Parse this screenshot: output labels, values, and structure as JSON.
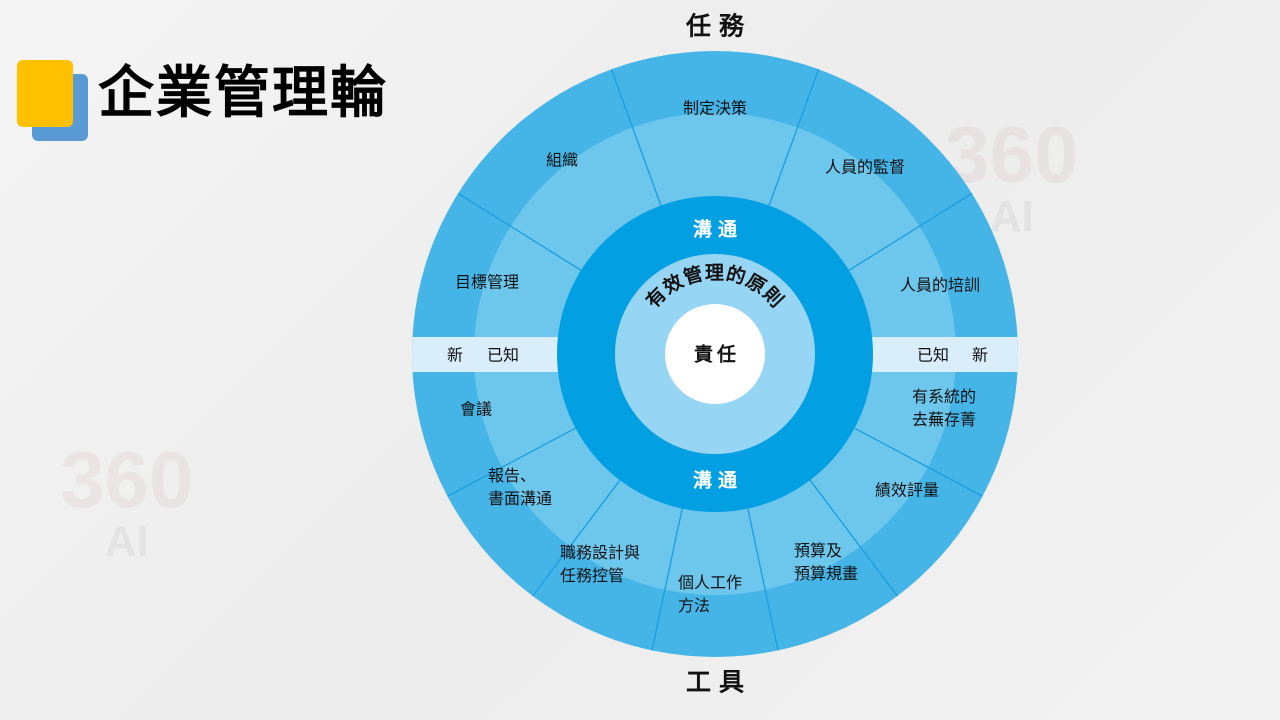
{
  "title": "企業管理輪",
  "watermark": {
    "number": "360",
    "letters": "AI"
  },
  "axis": {
    "top": "任務",
    "bottom": "工具"
  },
  "center": {
    "core": "責任",
    "arc_text": "有效管理的原則",
    "ring_top": "溝通",
    "ring_bottom": "溝通"
  },
  "band": {
    "left_outer": "新",
    "left_inner": "已知",
    "right_inner": "已知",
    "right_outer": "新"
  },
  "top_segments": [
    {
      "line1": "目標管理"
    },
    {
      "line1": "組織"
    },
    {
      "line1": "制定決策"
    },
    {
      "line1": "人員的監督"
    },
    {
      "line1": "人員的培訓"
    }
  ],
  "bottom_segments": [
    {
      "line1": "會議"
    },
    {
      "line1": "報告、",
      "line2": "書面溝通"
    },
    {
      "line1": "職務設計與",
      "line2": "任務控管"
    },
    {
      "line1": "個人工作",
      "line2": "方法"
    },
    {
      "line1": "預算及",
      "line2": "預算規畫"
    },
    {
      "line1": "績效評量"
    },
    {
      "line1": "有系統的",
      "line2": "去蕪存菁"
    }
  ],
  "colors": {
    "outer_ring": "#45b5e8",
    "middle_ring": "#6dc7ed",
    "band": "#d9eefa",
    "communication_ring": "#039fe3",
    "principle_ring": "#97d5f5",
    "core": "#ffffff",
    "divider": "#1a9de0",
    "logo_yellow": "#ffc000",
    "logo_blue": "#5b9bd5"
  }
}
